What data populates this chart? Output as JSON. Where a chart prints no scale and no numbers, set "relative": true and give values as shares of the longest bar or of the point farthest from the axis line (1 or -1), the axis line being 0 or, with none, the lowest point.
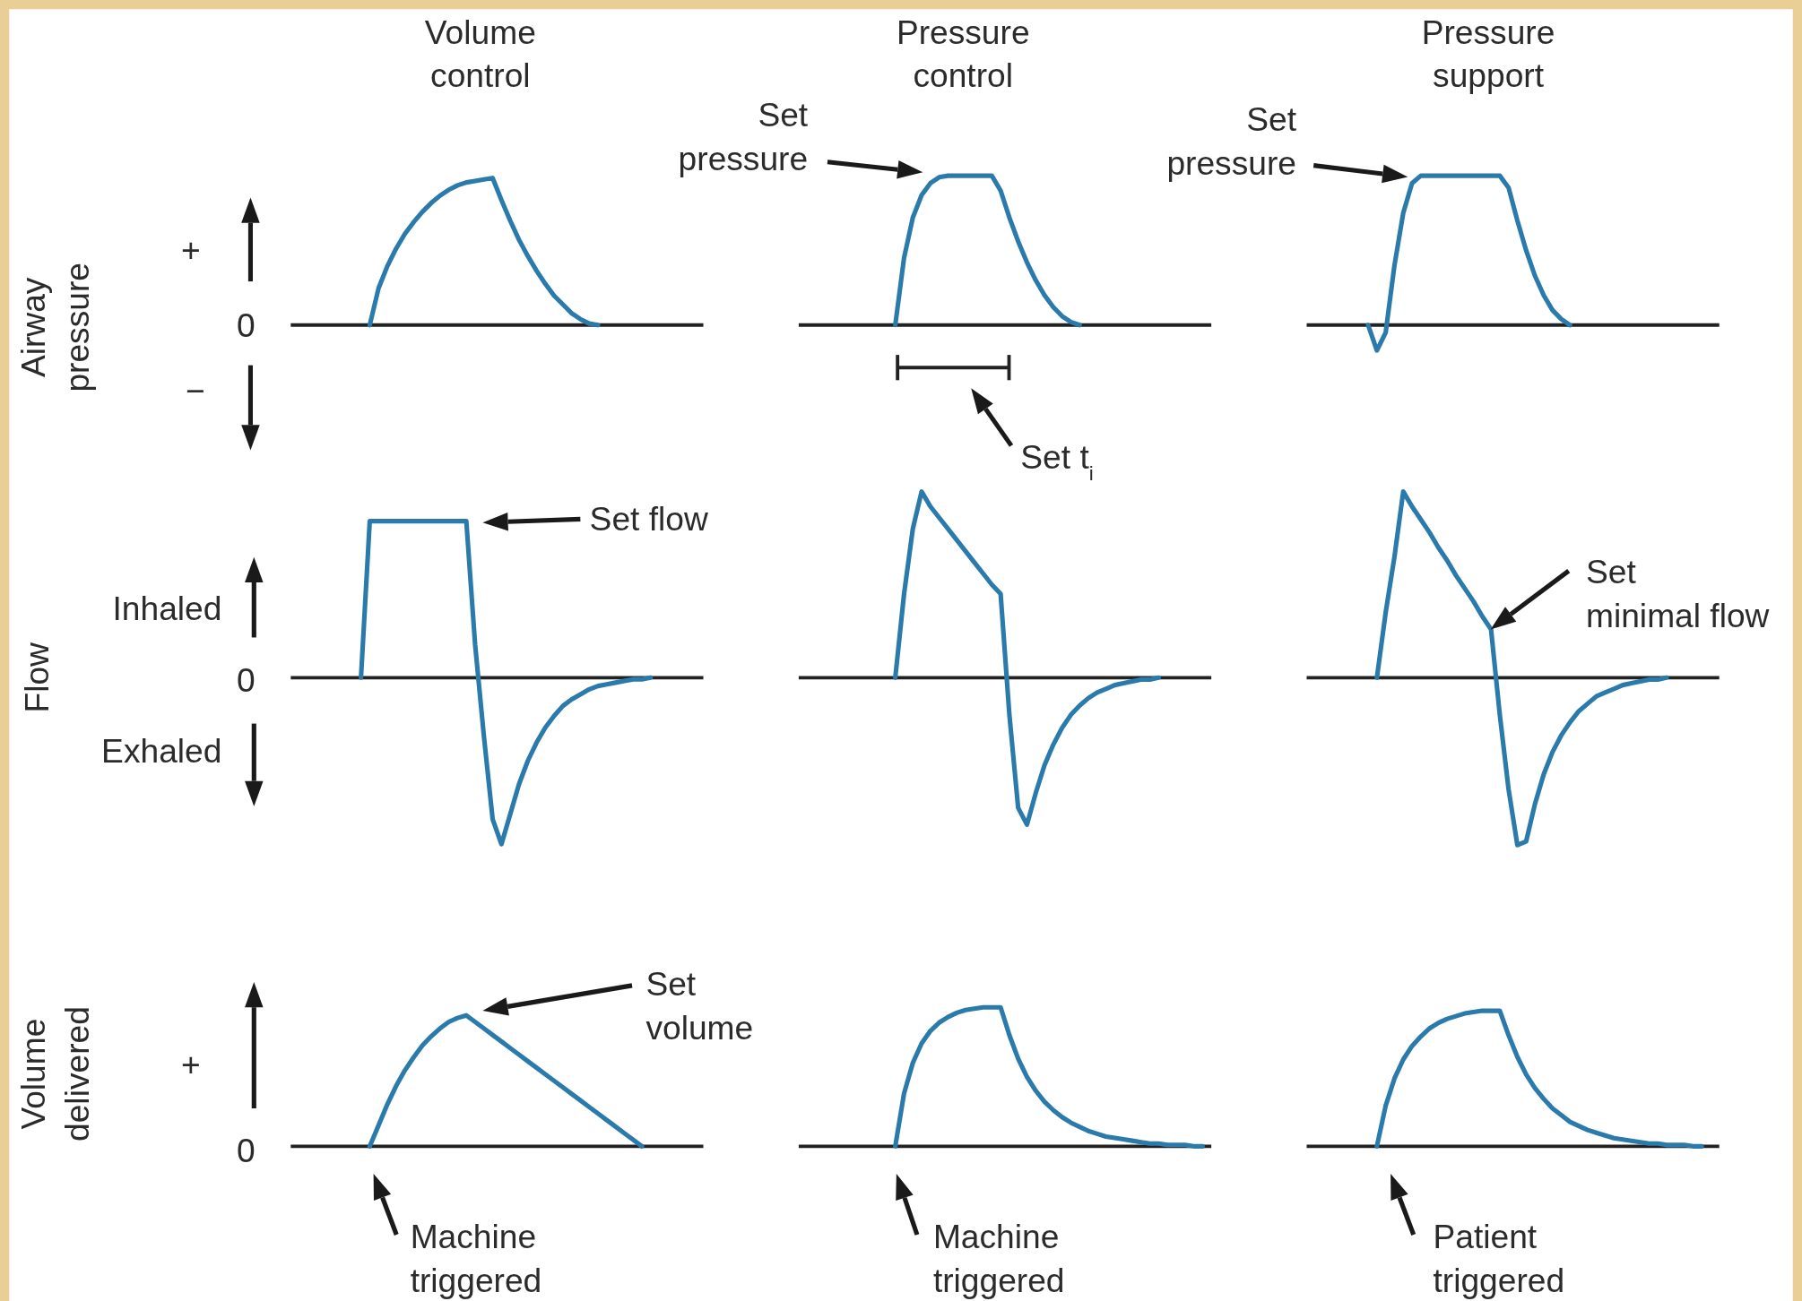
{
  "chart_data": [
    {
      "type": "line",
      "relative": true,
      "title": "Volume control",
      "ylabel": "Airway pressure",
      "annotations": [
        "+",
        "0",
        "−"
      ],
      "color": "#2a7bab",
      "categories": [
        null,
        null,
        null,
        null,
        null,
        null,
        null,
        null,
        null,
        null,
        null,
        null,
        null,
        null,
        null,
        null,
        null,
        null,
        null,
        null,
        null,
        null,
        null,
        null,
        null,
        null,
        null,
        null,
        null,
        null,
        null,
        null,
        null,
        null,
        null,
        null,
        null,
        null,
        null,
        null,
        null,
        null,
        null,
        null,
        null,
        null,
        null,
        null
      ],
      "values": [
        null,
        null,
        null,
        null,
        null,
        null,
        null,
        null,
        null,
        0,
        0.25,
        0.4,
        0.52,
        0.62,
        0.7,
        0.77,
        0.83,
        0.88,
        0.92,
        0.95,
        0.97,
        0.98,
        0.99,
        1,
        0.85,
        0.71,
        0.58,
        0.47,
        0.37,
        0.28,
        0.2,
        0.14,
        0.08,
        0.04,
        0.01,
        0,
        null,
        null,
        null,
        null,
        null,
        null,
        null,
        null,
        null,
        null,
        null,
        null
      ]
    },
    {
      "type": "line",
      "relative": true,
      "title": "Pressure control",
      "annotations": [
        "Set pressure",
        "Set t$_{i}$"
      ],
      "color": "#2a7bab",
      "categories": [
        null,
        null,
        null,
        null,
        null,
        null,
        null,
        null,
        null,
        null,
        null,
        null,
        null,
        null,
        null,
        null,
        null,
        null,
        null,
        null,
        null,
        null,
        null,
        null,
        null,
        null,
        null,
        null,
        null,
        null,
        null,
        null,
        null,
        null,
        null,
        null,
        null,
        null,
        null,
        null,
        null,
        null,
        null,
        null,
        null,
        null,
        null,
        null
      ],
      "values": [
        null,
        null,
        null,
        null,
        null,
        null,
        null,
        null,
        null,
        null,
        null,
        0,
        0.45,
        0.72,
        0.87,
        0.95,
        0.99,
        1,
        1,
        1,
        1,
        1,
        1,
        0.9,
        0.72,
        0.56,
        0.42,
        0.3,
        0.2,
        0.12,
        0.06,
        0.02,
        0,
        null,
        null,
        null,
        null,
        null,
        null,
        null,
        null,
        null,
        null,
        null,
        null,
        null,
        null,
        null
      ]
    },
    {
      "type": "line",
      "relative": true,
      "title": "Pressure support",
      "annotations": [
        "Set pressure"
      ],
      "color": "#2a7bab",
      "categories": [
        null,
        null,
        null,
        null,
        null,
        null,
        null,
        null,
        null,
        null,
        null,
        null,
        null,
        null,
        null,
        null,
        null,
        null,
        null,
        null,
        null,
        null,
        null,
        null,
        null,
        null,
        null,
        null,
        null,
        null,
        null,
        null,
        null,
        null,
        null,
        null,
        null,
        null,
        null,
        null,
        null,
        null,
        null,
        null,
        null,
        null,
        null,
        null
      ],
      "values": [
        null,
        null,
        null,
        null,
        null,
        null,
        null,
        0,
        -0.17,
        -0.05,
        0.4,
        0.75,
        0.95,
        1,
        1,
        1,
        1,
        1,
        1,
        1,
        1,
        1,
        1,
        0.92,
        0.7,
        0.5,
        0.33,
        0.2,
        0.1,
        0.04,
        0,
        null,
        null,
        null,
        null,
        null,
        null,
        null,
        null,
        null,
        null,
        null,
        null,
        null,
        null,
        null,
        null,
        null
      ]
    },
    {
      "type": "line",
      "relative": true,
      "ylabel": "Flow",
      "annotations": [
        "Inhaled",
        "0",
        "Exhaled",
        "Set flow"
      ],
      "color": "#2a7bab",
      "categories": [
        null,
        null,
        null,
        null,
        null,
        null,
        null,
        null,
        null,
        null,
        null,
        null,
        null,
        null,
        null,
        null,
        null,
        null,
        null,
        null,
        null,
        null,
        null,
        null,
        null,
        null,
        null,
        null,
        null,
        null,
        null,
        null,
        null,
        null,
        null,
        null,
        null,
        null,
        null,
        null,
        null,
        null,
        null,
        null,
        null,
        null,
        null,
        null
      ],
      "values": [
        null,
        null,
        null,
        null,
        null,
        null,
        null,
        null,
        0,
        0.94,
        0.94,
        0.94,
        0.94,
        0.94,
        0.94,
        0.94,
        0.94,
        0.94,
        0.94,
        0.94,
        0.94,
        0.2,
        -0.35,
        -0.85,
        -1,
        -0.82,
        -0.64,
        -0.5,
        -0.39,
        -0.3,
        -0.23,
        -0.17,
        -0.13,
        -0.1,
        -0.07,
        -0.05,
        -0.04,
        -0.03,
        -0.02,
        -0.01,
        -0.01,
        0,
        null,
        null,
        null,
        null,
        null,
        null
      ]
    },
    {
      "type": "line",
      "relative": true,
      "color": "#2a7bab",
      "categories": [
        null,
        null,
        null,
        null,
        null,
        null,
        null,
        null,
        null,
        null,
        null,
        null,
        null,
        null,
        null,
        null,
        null,
        null,
        null,
        null,
        null,
        null,
        null,
        null,
        null,
        null,
        null,
        null,
        null,
        null,
        null,
        null,
        null,
        null,
        null,
        null,
        null,
        null,
        null,
        null,
        null,
        null,
        null,
        null,
        null,
        null,
        null,
        null
      ],
      "values": [
        null,
        null,
        null,
        null,
        null,
        null,
        null,
        null,
        null,
        null,
        null,
        0,
        0.45,
        0.8,
        1,
        0.92,
        0.86,
        0.8,
        0.74,
        0.68,
        0.62,
        0.56,
        0.5,
        0.45,
        -0.2,
        -0.7,
        -0.79,
        -0.62,
        -0.47,
        -0.36,
        -0.27,
        -0.2,
        -0.15,
        -0.11,
        -0.08,
        -0.06,
        -0.04,
        -0.03,
        -0.02,
        -0.01,
        -0.01,
        0,
        null,
        null,
        null,
        null,
        null,
        null
      ]
    },
    {
      "type": "line",
      "relative": true,
      "annotations": [
        "Set minimal flow"
      ],
      "color": "#2a7bab",
      "categories": [
        null,
        null,
        null,
        null,
        null,
        null,
        null,
        null,
        null,
        null,
        null,
        null,
        null,
        null,
        null,
        null,
        null,
        null,
        null,
        null,
        null,
        null,
        null,
        null,
        null,
        null,
        null,
        null,
        null,
        null,
        null,
        null,
        null,
        null,
        null,
        null,
        null,
        null,
        null,
        null,
        null,
        null,
        null,
        null,
        null,
        null,
        null,
        null
      ],
      "values": [
        null,
        null,
        null,
        null,
        null,
        null,
        null,
        null,
        0,
        0.35,
        0.65,
        1,
        0.92,
        0.85,
        0.78,
        0.7,
        0.63,
        0.55,
        0.48,
        0.41,
        0.33,
        0.26,
        -0.2,
        -0.6,
        -0.9,
        -0.88,
        -0.68,
        -0.52,
        -0.4,
        -0.31,
        -0.24,
        -0.18,
        -0.14,
        -0.1,
        -0.08,
        -0.06,
        -0.04,
        -0.03,
        -0.02,
        -0.01,
        -0.01,
        0,
        null,
        null,
        null,
        null,
        null,
        null
      ]
    },
    {
      "type": "line",
      "relative": true,
      "ylabel": "Volume delivered",
      "annotations": [
        "+",
        "0",
        "Set volume",
        "Machine triggered"
      ],
      "color": "#2a7bab",
      "categories": [
        null,
        null,
        null,
        null,
        null,
        null,
        null,
        null,
        null,
        null,
        null,
        null,
        null,
        null,
        null,
        null,
        null,
        null,
        null,
        null,
        null,
        null,
        null,
        null,
        null,
        null,
        null,
        null,
        null,
        null,
        null,
        null,
        null,
        null,
        null,
        null,
        null,
        null,
        null,
        null,
        null,
        null,
        null,
        null,
        null,
        null,
        null,
        null
      ],
      "values": [
        null,
        null,
        null,
        null,
        null,
        null,
        null,
        null,
        null,
        0,
        0.16,
        0.32,
        0.46,
        0.58,
        0.68,
        0.77,
        0.84,
        0.9,
        0.95,
        0.98,
        1,
        0.95,
        0.9,
        0.85,
        0.8,
        0.75,
        0.7,
        0.65,
        0.6,
        0.55,
        0.5,
        0.45,
        0.4,
        0.35,
        0.3,
        0.25,
        0.2,
        0.15,
        0.1,
        0.05,
        0,
        null,
        null,
        null,
        null,
        null,
        null,
        null
      ]
    },
    {
      "type": "line",
      "relative": true,
      "annotations": [
        "Machine triggered"
      ],
      "color": "#2a7bab",
      "categories": [
        null,
        null,
        null,
        null,
        null,
        null,
        null,
        null,
        null,
        null,
        null,
        null,
        null,
        null,
        null,
        null,
        null,
        null,
        null,
        null,
        null,
        null,
        null,
        null,
        null,
        null,
        null,
        null,
        null,
        null,
        null,
        null,
        null,
        null,
        null,
        null,
        null,
        null,
        null,
        null,
        null,
        null,
        null,
        null,
        null,
        null,
        null,
        null
      ],
      "values": [
        null,
        null,
        null,
        null,
        null,
        null,
        null,
        null,
        null,
        null,
        null,
        0,
        0.38,
        0.6,
        0.74,
        0.83,
        0.89,
        0.93,
        0.96,
        0.98,
        0.99,
        1,
        1,
        1,
        0.8,
        0.63,
        0.5,
        0.4,
        0.32,
        0.26,
        0.21,
        0.17,
        0.14,
        0.11,
        0.09,
        0.07,
        0.06,
        0.05,
        0.04,
        0.03,
        0.02,
        0.02,
        0.01,
        0.01,
        0.01,
        0,
        0,
        null
      ]
    },
    {
      "type": "line",
      "relative": true,
      "annotations": [
        "Patient triggered"
      ],
      "color": "#2a7bab",
      "categories": [
        null,
        null,
        null,
        null,
        null,
        null,
        null,
        null,
        null,
        null,
        null,
        null,
        null,
        null,
        null,
        null,
        null,
        null,
        null,
        null,
        null,
        null,
        null,
        null,
        null,
        null,
        null,
        null,
        null,
        null,
        null,
        null,
        null,
        null,
        null,
        null,
        null,
        null,
        null,
        null,
        null,
        null,
        null,
        null,
        null,
        null,
        null,
        null
      ],
      "values": [
        null,
        null,
        null,
        null,
        null,
        null,
        null,
        null,
        0,
        0.3,
        0.5,
        0.64,
        0.74,
        0.81,
        0.87,
        0.91,
        0.94,
        0.96,
        0.98,
        0.99,
        1,
        1,
        1,
        0.82,
        0.66,
        0.53,
        0.43,
        0.35,
        0.28,
        0.23,
        0.18,
        0.15,
        0.12,
        0.1,
        0.08,
        0.06,
        0.05,
        0.04,
        0.03,
        0.02,
        0.02,
        0.01,
        0.01,
        0.01,
        0,
        0,
        null,
        null
      ]
    }
  ]
}
